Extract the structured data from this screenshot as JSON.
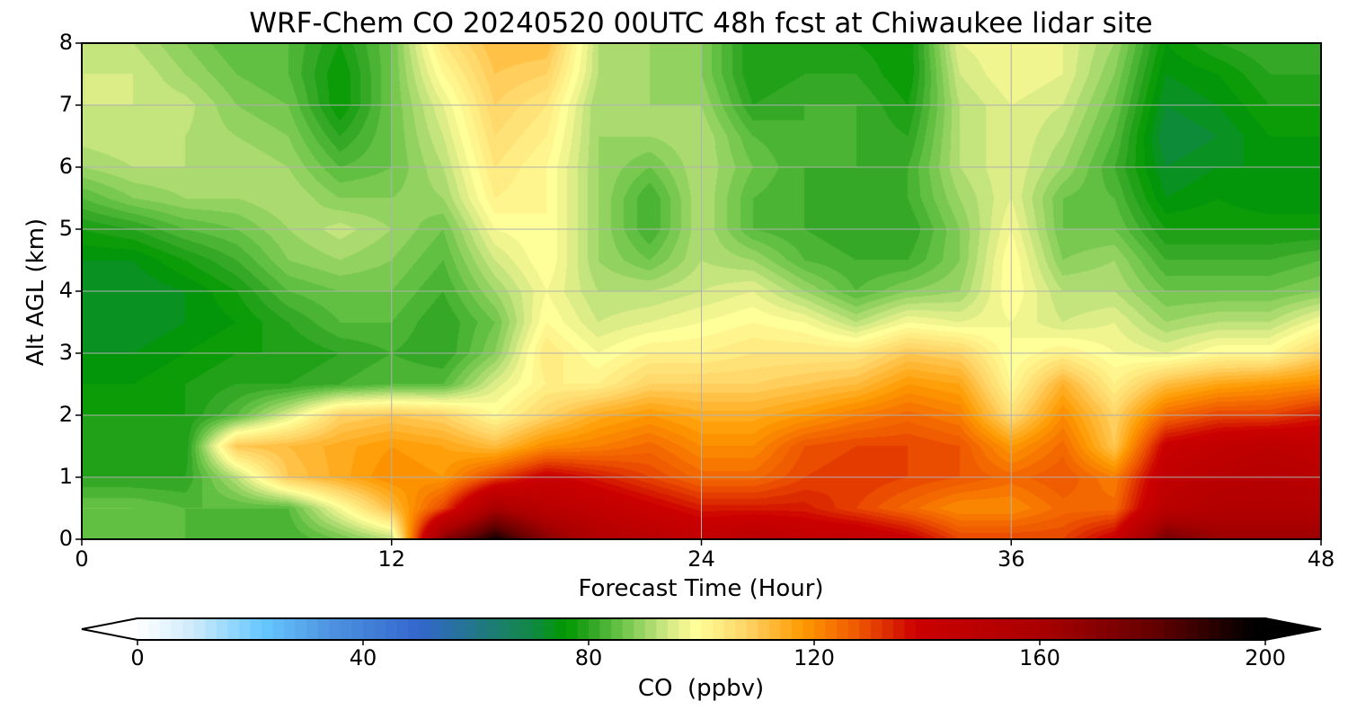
{
  "chart_data": {
    "type": "heatmap",
    "title": "WRF-Chem CO  20240520 00UTC 48h fcst at Chiwaukee lidar site",
    "xlabel": "Forecast Time (Hour)",
    "ylabel": "Alt AGL (km)",
    "xlim": [
      0,
      48
    ],
    "ylim": [
      0,
      8
    ],
    "xticks": [
      "0",
      "12",
      "24",
      "36",
      "48"
    ],
    "yticks": [
      "0",
      "1",
      "2",
      "3",
      "4",
      "5",
      "6",
      "7",
      "8"
    ],
    "grid": true,
    "x": [
      0,
      2,
      4,
      6,
      8,
      10,
      12,
      14,
      16,
      18,
      20,
      22,
      24,
      26,
      28,
      30,
      32,
      34,
      36,
      38,
      40,
      42,
      44,
      46,
      48
    ],
    "y": [
      0,
      0.5,
      1,
      1.5,
      2,
      2.5,
      3,
      3.5,
      4,
      4.5,
      5,
      5.5,
      6,
      6.5,
      7,
      7.5,
      8
    ],
    "z_by_x": [
      [
        84,
        86,
        80,
        78,
        78,
        76,
        74,
        72,
        72,
        74,
        78,
        84,
        90,
        93,
        94,
        94,
        94
      ],
      [
        84,
        86,
        80,
        78,
        78,
        76,
        74,
        72,
        72,
        74,
        80,
        88,
        92,
        94,
        94,
        94,
        92
      ],
      [
        84,
        84,
        80,
        78,
        78,
        78,
        76,
        74,
        74,
        78,
        84,
        90,
        92,
        92,
        93,
        90,
        88
      ],
      [
        82,
        84,
        92,
        110,
        84,
        80,
        78,
        76,
        78,
        82,
        86,
        90,
        92,
        90,
        88,
        86,
        84
      ],
      [
        82,
        84,
        110,
        112,
        95,
        80,
        78,
        80,
        84,
        88,
        90,
        92,
        90,
        88,
        86,
        84,
        84
      ],
      [
        86,
        98,
        115,
        115,
        108,
        82,
        80,
        84,
        86,
        90,
        93,
        88,
        84,
        80,
        76,
        76,
        78
      ],
      [
        92,
        112,
        120,
        118,
        110,
        84,
        82,
        84,
        86,
        88,
        90,
        88,
        86,
        86,
        86,
        86,
        86
      ],
      [
        170,
        130,
        118,
        116,
        108,
        84,
        80,
        80,
        82,
        84,
        86,
        90,
        92,
        94,
        96,
        100,
        104
      ],
      [
        195,
        160,
        130,
        112,
        100,
        95,
        88,
        86,
        90,
        94,
        98,
        102,
        104,
        106,
        108,
        110,
        112
      ],
      [
        170,
        150,
        140,
        120,
        108,
        102,
        104,
        100,
        98,
        100,
        100,
        100,
        100,
        102,
        104,
        108,
        112
      ],
      [
        155,
        145,
        135,
        122,
        115,
        102,
        98,
        94,
        92,
        90,
        90,
        90,
        90,
        90,
        90,
        92,
        92
      ],
      [
        150,
        140,
        130,
        125,
        118,
        108,
        102,
        96,
        92,
        86,
        82,
        82,
        86,
        90,
        90,
        90,
        90
      ],
      [
        145,
        135,
        125,
        120,
        115,
        108,
        102,
        98,
        94,
        92,
        92,
        92,
        92,
        92,
        90,
        88,
        88
      ],
      [
        150,
        135,
        125,
        120,
        115,
        108,
        104,
        100,
        96,
        90,
        84,
        84,
        86,
        84,
        80,
        78,
        78
      ],
      [
        145,
        135,
        130,
        128,
        118,
        110,
        104,
        98,
        90,
        84,
        82,
        82,
        82,
        82,
        82,
        80,
        80
      ],
      [
        145,
        130,
        132,
        130,
        122,
        112,
        104,
        92,
        84,
        82,
        80,
        80,
        82,
        82,
        82,
        80,
        78
      ],
      [
        140,
        125,
        130,
        130,
        125,
        118,
        110,
        98,
        88,
        82,
        80,
        82,
        82,
        80,
        78,
        76,
        76
      ],
      [
        130,
        120,
        128,
        128,
        122,
        116,
        108,
        96,
        90,
        88,
        88,
        90,
        92,
        92,
        92,
        94,
        96
      ],
      [
        130,
        120,
        125,
        118,
        106,
        100,
        98,
        98,
        100,
        100,
        98,
        96,
        96,
        96,
        96,
        98,
        98
      ],
      [
        130,
        125,
        128,
        125,
        120,
        114,
        102,
        94,
        92,
        88,
        86,
        86,
        90,
        92,
        94,
        96,
        96
      ],
      [
        140,
        125,
        122,
        110,
        108,
        102,
        98,
        96,
        92,
        90,
        86,
        84,
        82,
        84,
        86,
        88,
        90
      ],
      [
        175,
        150,
        145,
        140,
        125,
        112,
        96,
        90,
        86,
        82,
        78,
        74,
        72,
        70,
        72,
        74,
        76
      ],
      [
        165,
        155,
        150,
        145,
        130,
        116,
        100,
        92,
        86,
        82,
        78,
        76,
        74,
        72,
        74,
        76,
        80
      ],
      [
        165,
        155,
        152,
        148,
        130,
        118,
        100,
        92,
        86,
        82,
        78,
        74,
        74,
        76,
        78,
        80,
        82
      ],
      [
        165,
        155,
        150,
        145,
        135,
        120,
        108,
        98,
        88,
        84,
        78,
        74,
        74,
        76,
        78,
        80,
        82
      ]
    ],
    "colorbar": {
      "label": "CO  (ppbv)",
      "range": [
        0,
        200
      ],
      "step": 2,
      "extend": "both",
      "ticks": [
        "0",
        "40",
        "80",
        "120",
        "160",
        "200"
      ],
      "colormap": [
        [
          0,
          "#ffffff"
        ],
        [
          10,
          "#cdeafc"
        ],
        [
          22,
          "#66c8ff"
        ],
        [
          34,
          "#4e94e0"
        ],
        [
          50,
          "#3366cc"
        ],
        [
          60,
          "#227788"
        ],
        [
          70,
          "#118844"
        ],
        [
          76,
          "#009900"
        ],
        [
          80,
          "#2aa420"
        ],
        [
          86,
          "#6cc448"
        ],
        [
          92,
          "#b8e078"
        ],
        [
          96,
          "#e8f08c"
        ],
        [
          99,
          "#ffff99"
        ],
        [
          108,
          "#ffd466"
        ],
        [
          118,
          "#ff9900"
        ],
        [
          128,
          "#ee5500"
        ],
        [
          138,
          "#cc0000"
        ],
        [
          160,
          "#aa0000"
        ],
        [
          180,
          "#660000"
        ],
        [
          198,
          "#000000"
        ]
      ]
    }
  }
}
